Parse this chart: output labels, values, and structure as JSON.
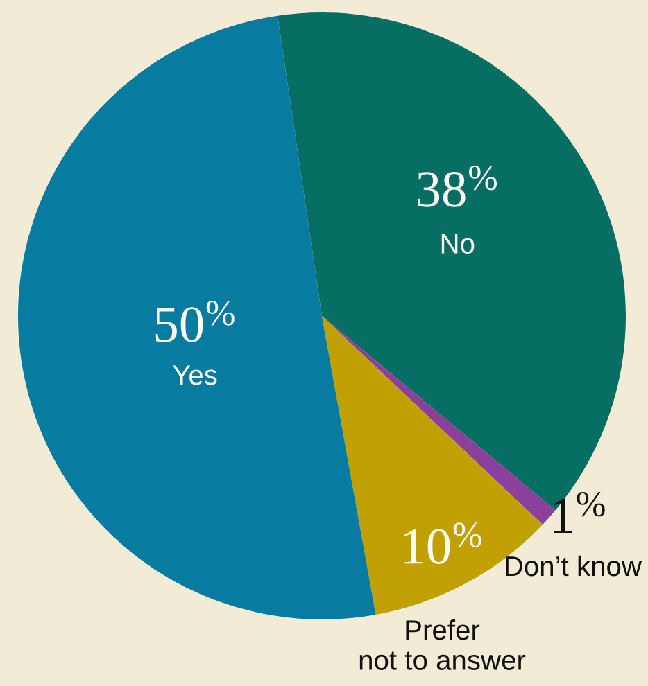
{
  "chart_data": {
    "type": "pie",
    "categories": [
      "No",
      "Don’t know",
      "Prefer\nnot to answer",
      "Yes"
    ],
    "values": [
      38,
      1,
      10,
      50
    ],
    "colors": [
      "#066e63",
      "#8b409b",
      "#c0a002",
      "#087ba1"
    ],
    "value_labels": [
      "38$^{%}$",
      "1$^{%}$",
      "10$^{%}$",
      "50$^{%}$"
    ]
  }
}
